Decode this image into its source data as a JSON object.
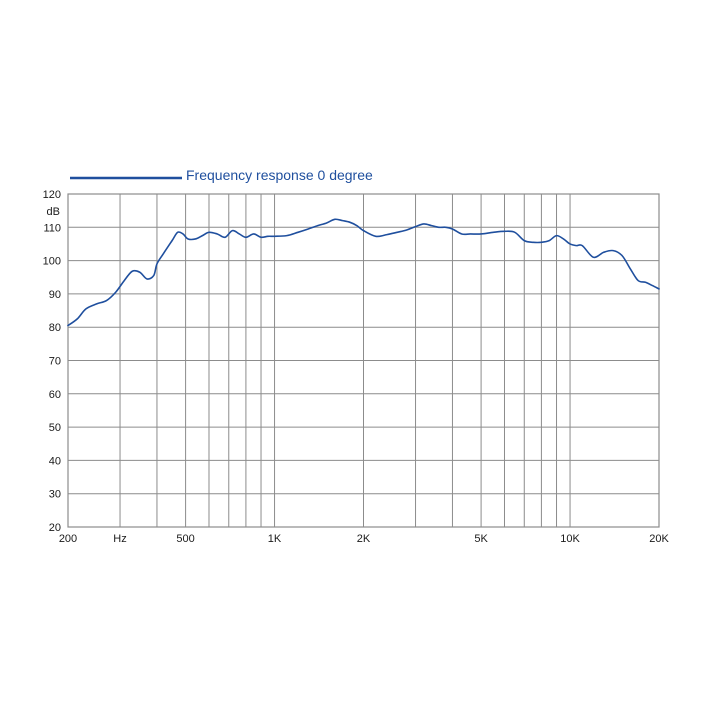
{
  "colors": {
    "series": "#1f4f9e",
    "grid": "#8c8c8c",
    "text": "#1a1a1a",
    "background": "#ffffff"
  },
  "chart_data": {
    "type": "line",
    "xscale": "log",
    "xlim": [
      200,
      20000
    ],
    "ylim": [
      20,
      120
    ],
    "ylabel": "dB",
    "xunit": "Hz",
    "grid": true,
    "legend_position": "top-left",
    "x_gridlines": [
      200,
      300,
      400,
      500,
      600,
      700,
      800,
      900,
      1000,
      2000,
      3000,
      4000,
      5000,
      6000,
      7000,
      8000,
      9000,
      10000,
      20000
    ],
    "x_tick_labels": [
      {
        "value": 200,
        "label": "200"
      },
      {
        "value": 300,
        "label": "Hz"
      },
      {
        "value": 500,
        "label": "500"
      },
      {
        "value": 1000,
        "label": "1K"
      },
      {
        "value": 2000,
        "label": "2K"
      },
      {
        "value": 5000,
        "label": "5K"
      },
      {
        "value": 10000,
        "label": "10K"
      },
      {
        "value": 20000,
        "label": "20K"
      }
    ],
    "y_ticks": [
      20,
      30,
      40,
      50,
      60,
      70,
      80,
      90,
      100,
      110,
      120
    ],
    "y_tick_labels": [
      "20",
      "30",
      "40",
      "50",
      "60",
      "70",
      "80",
      "90",
      "100",
      "110",
      "120"
    ],
    "series": [
      {
        "name": "Frequency response 0 degree",
        "x": [
          200,
          215,
          230,
          250,
          270,
          290,
          310,
          330,
          350,
          370,
          390,
          400,
          420,
          450,
          470,
          490,
          510,
          540,
          570,
          600,
          640,
          680,
          720,
          760,
          800,
          850,
          900,
          950,
          1000,
          1100,
          1200,
          1300,
          1400,
          1500,
          1600,
          1700,
          1800,
          1900,
          2000,
          2200,
          2400,
          2600,
          2800,
          3000,
          3200,
          3400,
          3600,
          3800,
          4000,
          4300,
          4600,
          5000,
          5500,
          6000,
          6500,
          7000,
          7500,
          8000,
          8500,
          9000,
          9500,
          10000,
          10500,
          11000,
          12000,
          13000,
          14000,
          15000,
          16000,
          17000,
          18000,
          19000,
          20000
        ],
        "y": [
          80.5,
          82.5,
          85.5,
          87,
          88,
          90.5,
          94,
          96.8,
          96.5,
          94.5,
          95.5,
          99,
          102,
          106,
          108.5,
          108,
          106.5,
          106.5,
          107.5,
          108.5,
          108,
          107,
          109,
          108,
          107,
          108,
          107,
          107.3,
          107.3,
          107.5,
          108.5,
          109.5,
          110.5,
          111.3,
          112.4,
          112,
          111.5,
          110.5,
          109,
          107.3,
          107.8,
          108.5,
          109.2,
          110.2,
          111,
          110.5,
          110,
          110,
          109.5,
          108,
          108,
          108,
          108.5,
          108.8,
          108.5,
          106,
          105.5,
          105.5,
          106,
          107.5,
          106.5,
          105,
          104.5,
          104.5,
          101,
          102.5,
          103,
          101.5,
          97.5,
          94,
          93.5,
          92.5,
          91.5
        ]
      }
    ]
  }
}
